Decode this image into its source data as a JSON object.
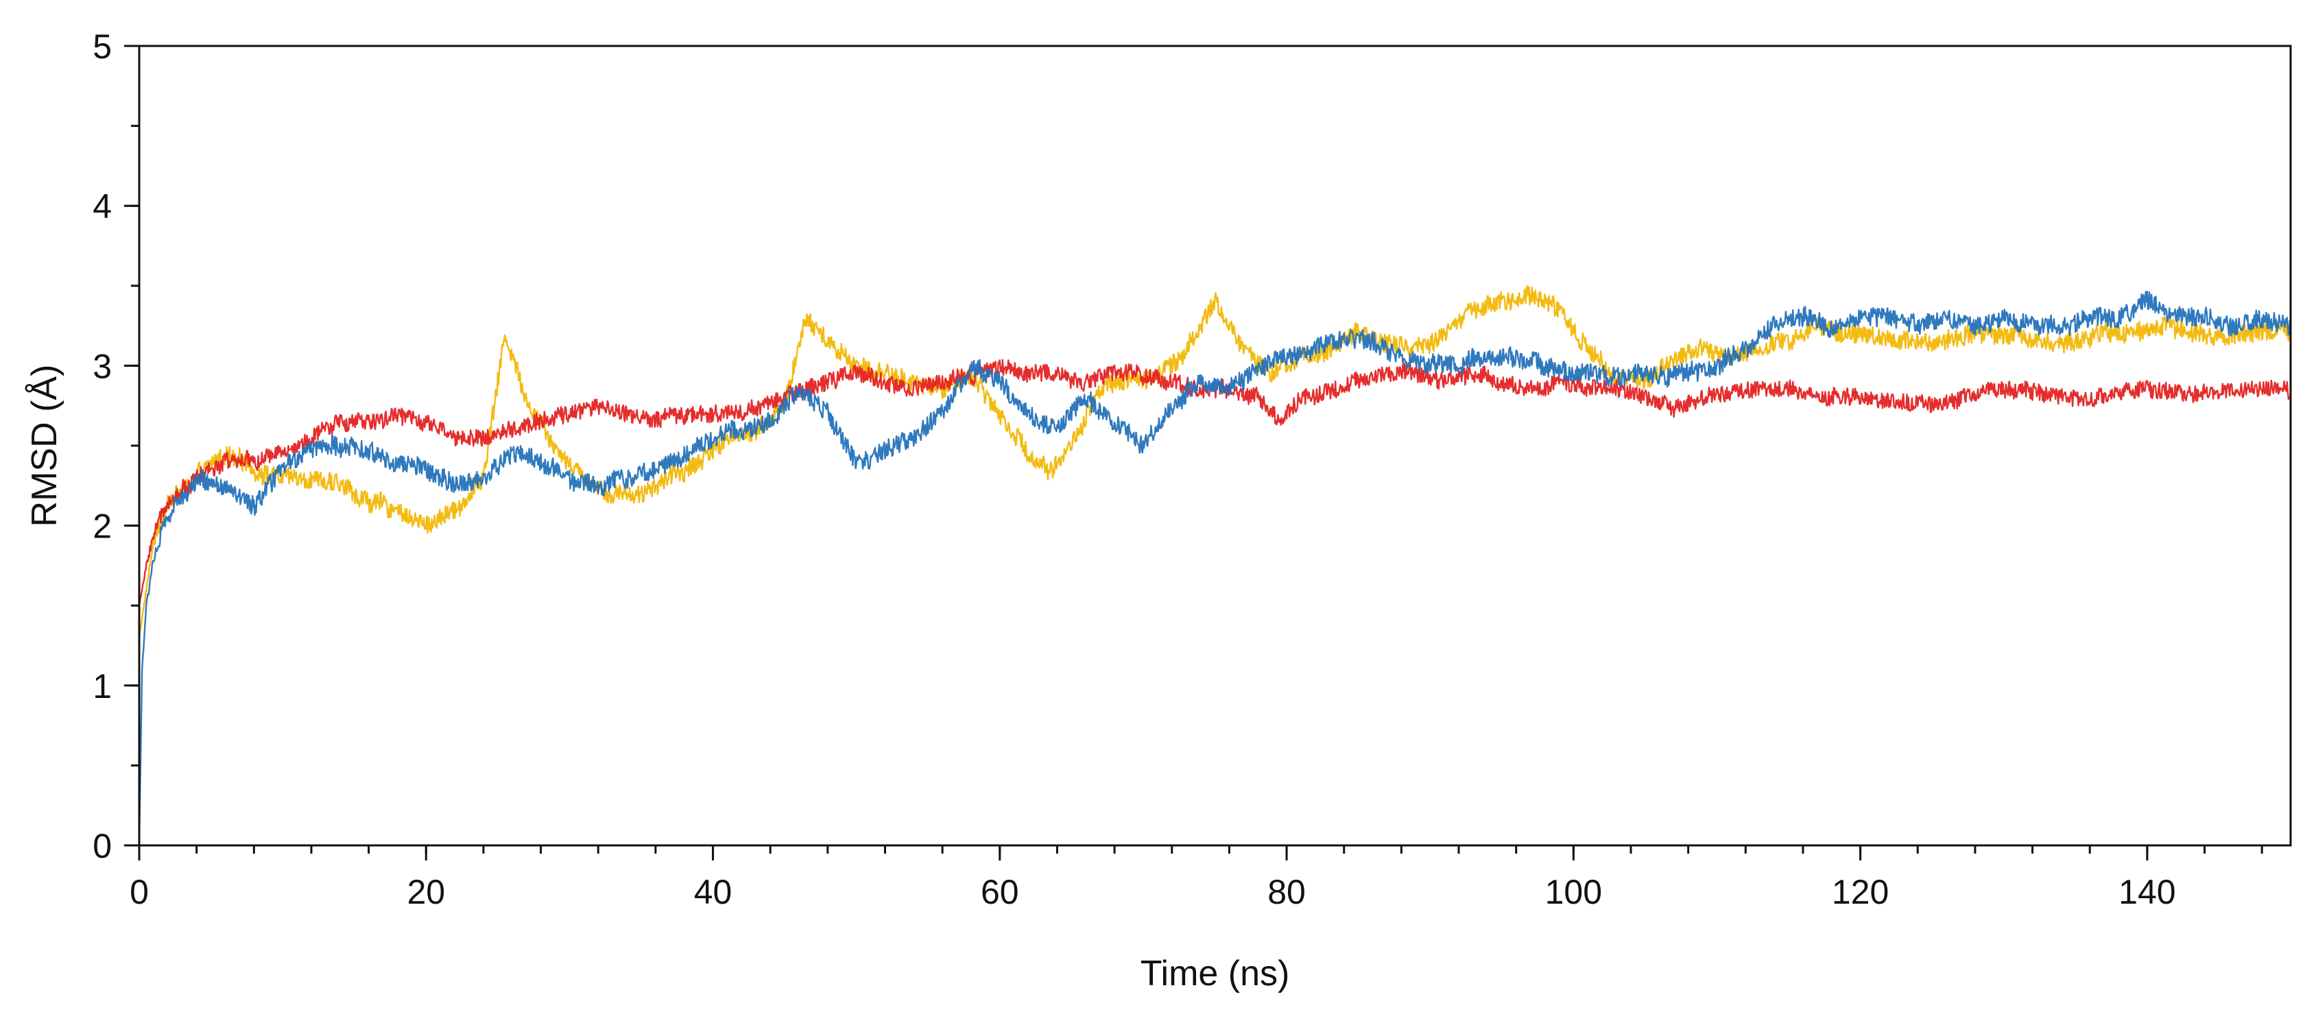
{
  "chart_data": {
    "type": "line",
    "title": "",
    "xlabel": "Time (ns)",
    "ylabel": "RMSD (Å)",
    "xlim": [
      0,
      150
    ],
    "ylim": [
      0,
      5
    ],
    "x_ticks": [
      0,
      20,
      40,
      60,
      80,
      100,
      120,
      140
    ],
    "x_tick_labels": [
      "0",
      "20",
      "40",
      "60",
      "80",
      "100",
      "120",
      "140"
    ],
    "y_ticks": [
      0,
      1,
      2,
      3,
      4,
      5
    ],
    "y_tick_labels": [
      "0",
      "1",
      "2",
      "3",
      "4",
      "5"
    ],
    "grid": false,
    "legend": "none",
    "colors": {
      "axis": "#111111",
      "background": "#ffffff"
    },
    "series": [
      {
        "name": "yellow",
        "color": "#F2B705",
        "noise": 0.09,
        "x": [
          0,
          0.5,
          1,
          2,
          4,
          6,
          8,
          10,
          12,
          14,
          16,
          18,
          20,
          22,
          24,
          25.5,
          27,
          29,
          31,
          33,
          35,
          37,
          39,
          41,
          43,
          45,
          46.5,
          48,
          50,
          52,
          54,
          56,
          58,
          60,
          62,
          63.5,
          65,
          67,
          69,
          71,
          73,
          75,
          77,
          79,
          81,
          83,
          85,
          87,
          89,
          91,
          93,
          95,
          97,
          99,
          101,
          103,
          105,
          107,
          109,
          111,
          113,
          115,
          117,
          119,
          121,
          123,
          125,
          127,
          129,
          131,
          133,
          135,
          137,
          139,
          141,
          143,
          145,
          147,
          150
        ],
        "y": [
          1.3,
          1.6,
          1.9,
          2.15,
          2.3,
          2.45,
          2.35,
          2.3,
          2.3,
          2.25,
          2.15,
          2.1,
          2.0,
          2.1,
          2.3,
          3.2,
          2.8,
          2.5,
          2.3,
          2.2,
          2.2,
          2.3,
          2.4,
          2.55,
          2.6,
          2.75,
          3.3,
          3.15,
          3.0,
          2.95,
          2.9,
          2.85,
          2.95,
          2.7,
          2.45,
          2.35,
          2.5,
          2.85,
          2.9,
          2.95,
          3.1,
          3.4,
          3.1,
          2.95,
          3.05,
          3.1,
          3.2,
          3.15,
          3.1,
          3.2,
          3.35,
          3.4,
          3.45,
          3.35,
          3.1,
          2.95,
          2.9,
          3.05,
          3.1,
          3.05,
          3.1,
          3.15,
          3.25,
          3.2,
          3.2,
          3.15,
          3.15,
          3.2,
          3.2,
          3.2,
          3.15,
          3.15,
          3.2,
          3.2,
          3.25,
          3.2,
          3.2,
          3.2,
          3.25
        ]
      },
      {
        "name": "red",
        "color": "#E52222",
        "noise": 0.08,
        "x": [
          0,
          0.5,
          1,
          2,
          4,
          6,
          8,
          10,
          12,
          14,
          16,
          18,
          20,
          22,
          24,
          26,
          28,
          30,
          32,
          34,
          36,
          38,
          40,
          42,
          44,
          46,
          48,
          50,
          52,
          54,
          56,
          58,
          60,
          62,
          64,
          66,
          68,
          70,
          72,
          74,
          76,
          78,
          79.5,
          81,
          83,
          85,
          87,
          89,
          91,
          93,
          95,
          97,
          99,
          101,
          103,
          105,
          107,
          109,
          111,
          113,
          115,
          117,
          119,
          121,
          123,
          125,
          127,
          129,
          131,
          133,
          135,
          137,
          139,
          141,
          143,
          145,
          147,
          150
        ],
        "y": [
          1.5,
          1.75,
          1.95,
          2.15,
          2.3,
          2.4,
          2.4,
          2.45,
          2.55,
          2.65,
          2.65,
          2.7,
          2.65,
          2.55,
          2.55,
          2.6,
          2.65,
          2.7,
          2.75,
          2.7,
          2.65,
          2.7,
          2.7,
          2.72,
          2.75,
          2.85,
          2.9,
          2.95,
          2.9,
          2.85,
          2.9,
          2.95,
          3.0,
          2.95,
          2.95,
          2.9,
          2.95,
          2.95,
          2.9,
          2.85,
          2.85,
          2.8,
          2.65,
          2.8,
          2.85,
          2.9,
          2.95,
          2.95,
          2.9,
          2.95,
          2.9,
          2.85,
          2.9,
          2.85,
          2.85,
          2.8,
          2.75,
          2.8,
          2.82,
          2.85,
          2.85,
          2.82,
          2.8,
          2.8,
          2.78,
          2.75,
          2.8,
          2.85,
          2.85,
          2.82,
          2.8,
          2.82,
          2.85,
          2.85,
          2.82,
          2.85,
          2.85,
          2.85
        ]
      },
      {
        "name": "blue",
        "color": "#2472BA",
        "noise": 0.09,
        "x": [
          0,
          0.2,
          0.5,
          1,
          2,
          4,
          6,
          8,
          10,
          12,
          14,
          16,
          18,
          20,
          22,
          24,
          26,
          28,
          30,
          32,
          34,
          36,
          38,
          40,
          42,
          44,
          46,
          48,
          50,
          52,
          54,
          56,
          58,
          60,
          62,
          64,
          66,
          68,
          70,
          72,
          74,
          76,
          78,
          80,
          82,
          84,
          86,
          88,
          90,
          92,
          94,
          96,
          98,
          100,
          102,
          104,
          106,
          108,
          110,
          112,
          114,
          116,
          118,
          120,
          122,
          124,
          126,
          128,
          130,
          132,
          134,
          136,
          138,
          140,
          142,
          144,
          146,
          148,
          150
        ],
        "y": [
          0.0,
          1.1,
          1.5,
          1.8,
          2.05,
          2.3,
          2.25,
          2.1,
          2.35,
          2.5,
          2.5,
          2.45,
          2.4,
          2.35,
          2.25,
          2.3,
          2.45,
          2.4,
          2.3,
          2.25,
          2.3,
          2.35,
          2.45,
          2.55,
          2.6,
          2.65,
          2.85,
          2.7,
          2.4,
          2.45,
          2.55,
          2.7,
          3.0,
          2.9,
          2.7,
          2.6,
          2.8,
          2.65,
          2.5,
          2.75,
          2.9,
          2.85,
          3.0,
          3.05,
          3.1,
          3.15,
          3.15,
          3.05,
          3.0,
          3.0,
          3.05,
          3.05,
          3.0,
          2.95,
          2.95,
          2.95,
          2.95,
          2.95,
          3.0,
          3.1,
          3.25,
          3.3,
          3.25,
          3.3,
          3.3,
          3.25,
          3.3,
          3.25,
          3.3,
          3.25,
          3.25,
          3.3,
          3.3,
          3.4,
          3.3,
          3.3,
          3.25,
          3.3,
          3.25
        ]
      }
    ]
  }
}
